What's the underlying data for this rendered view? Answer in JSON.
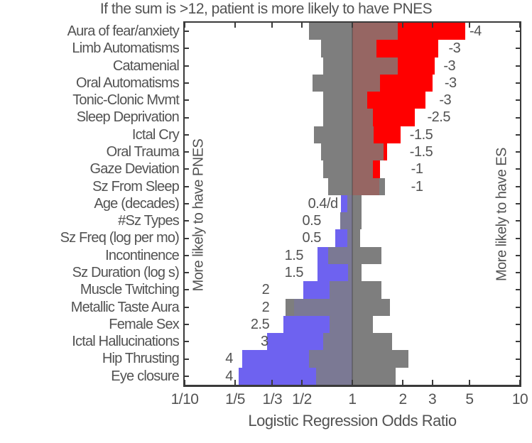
{
  "title": "If the sum is >12, patient is more likely to have PNES",
  "colors": {
    "text": "#525252",
    "axis_line": "#3a3a3a",
    "gray_bar": "#7e7e7e",
    "red_bar": "#ff0000",
    "red_overlap": "#966663",
    "blue_bar": "#6e62f0",
    "blue_overlap": "#7b7994",
    "background": "#ffffff"
  },
  "axis": {
    "xlabel": "Logistic Regression Odds Ratio",
    "left_label": "More likely to have PNES",
    "right_label": "More likely to have ES",
    "scale": "log",
    "x_range": [
      0.1,
      10
    ],
    "x_ticks": [
      {
        "label": "1/10",
        "value": 0.1
      },
      {
        "label": "1/5",
        "value": 0.2
      },
      {
        "label": "1/3",
        "value": 0.3333
      },
      {
        "label": "1/2",
        "value": 0.5
      },
      {
        "label": "1",
        "value": 1
      },
      {
        "label": "2",
        "value": 2
      },
      {
        "label": "3",
        "value": 3
      },
      {
        "label": "5",
        "value": 5
      },
      {
        "label": "10",
        "value": 10
      }
    ]
  },
  "chart_data": {
    "type": "bar",
    "orientation": "horizontal",
    "rows": [
      {
        "label": "Aura of fear/anxiety",
        "score": "-4",
        "odds_ratio": 4.7,
        "gray_lo": 0.55,
        "gray_hi": 1.86,
        "score_pos": 5.0
      },
      {
        "label": "Limb Automatisms",
        "score": "-3",
        "odds_ratio": 3.25,
        "gray_lo": 0.65,
        "gray_hi": 1.39,
        "score_pos": 3.75
      },
      {
        "label": "Catamenial",
        "score": "-3",
        "odds_ratio": 3.1,
        "gray_lo": 0.67,
        "gray_hi": 1.86,
        "score_pos": 3.5
      },
      {
        "label": "Oral Automatisms",
        "score": "-3",
        "odds_ratio": 3.0,
        "gray_lo": 0.58,
        "gray_hi": 1.46,
        "score_pos": 3.55
      },
      {
        "label": "Tonic-Clonic Mvmt",
        "score": "-3",
        "odds_ratio": 2.72,
        "gray_lo": 0.67,
        "gray_hi": 1.23,
        "score_pos": 3.3
      },
      {
        "label": "Sleep Deprivation",
        "score": "-2.5",
        "odds_ratio": 2.35,
        "gray_lo": 0.67,
        "gray_hi": 1.33,
        "score_pos": 2.8
      },
      {
        "label": "Ictal Cry",
        "score": "-1.5",
        "odds_ratio": 1.95,
        "gray_lo": 0.59,
        "gray_hi": 1.34,
        "score_pos": 2.2
      },
      {
        "label": "Oral Trauma",
        "score": "-1.5",
        "odds_ratio": 1.61,
        "gray_lo": 0.65,
        "gray_hi": 1.53,
        "score_pos": 2.2
      },
      {
        "label": "Gaze Deviation",
        "score": "-1",
        "odds_ratio": 1.46,
        "gray_lo": 0.67,
        "gray_hi": 1.33,
        "score_pos": 2.24
      },
      {
        "label": "Sz From Sleep",
        "score": "-1",
        "odds_ratio": 1.45,
        "gray_lo": 0.72,
        "gray_hi": 1.56,
        "score_pos": 2.24
      },
      {
        "label": "Age (decades)",
        "score": "0.4/d",
        "odds_ratio": 0.855,
        "gray_lo": 0.93,
        "gray_hi": 1.13,
        "score_pos": 0.82
      },
      {
        "label": "#Sz Types",
        "score": "0.5",
        "odds_ratio": 0.85,
        "gray_lo": 0.85,
        "gray_hi": 1.13,
        "score_pos": 0.65
      },
      {
        "label": "Sz Freq (log per mo)",
        "score": "0.5",
        "odds_ratio": 0.79,
        "gray_lo": 0.93,
        "gray_hi": 1.11,
        "score_pos": 0.65
      },
      {
        "label": "Incontinence",
        "score": "1.5",
        "odds_ratio": 0.62,
        "gray_lo": 0.72,
        "gray_hi": 1.49,
        "score_pos": 0.51
      },
      {
        "label": "Sz Duration (log s)",
        "score": "1.5",
        "odds_ratio": 0.62,
        "gray_lo": 0.94,
        "gray_hi": 1.13,
        "score_pos": 0.51
      },
      {
        "label": "Muscle Twitching",
        "score": "2",
        "odds_ratio": 0.51,
        "gray_lo": 0.73,
        "gray_hi": 1.49,
        "score_pos": 0.32
      },
      {
        "label": "Metallic Taste Aura",
        "score": "2",
        "odds_ratio": 0.45,
        "gray_lo": 0.4,
        "gray_hi": 1.67,
        "score_pos": 0.32
      },
      {
        "label": "Female Sex",
        "score": "2.5",
        "odds_ratio": 0.39,
        "gray_lo": 0.73,
        "gray_hi": 1.33,
        "score_pos": 0.32
      },
      {
        "label": "Ictal Hallucinations",
        "score": "3",
        "odds_ratio": 0.31,
        "gray_lo": 0.67,
        "gray_hi": 1.72,
        "score_pos": 0.315
      },
      {
        "label": "Hip Thrusting",
        "score": "4",
        "odds_ratio": 0.22,
        "gray_lo": 0.55,
        "gray_hi": 2.16,
        "score_pos": 0.194
      },
      {
        "label": "Eye closure",
        "score": "4",
        "odds_ratio": 0.21,
        "gray_lo": 0.61,
        "gray_hi": 1.81,
        "score_pos": 0.194
      }
    ]
  }
}
